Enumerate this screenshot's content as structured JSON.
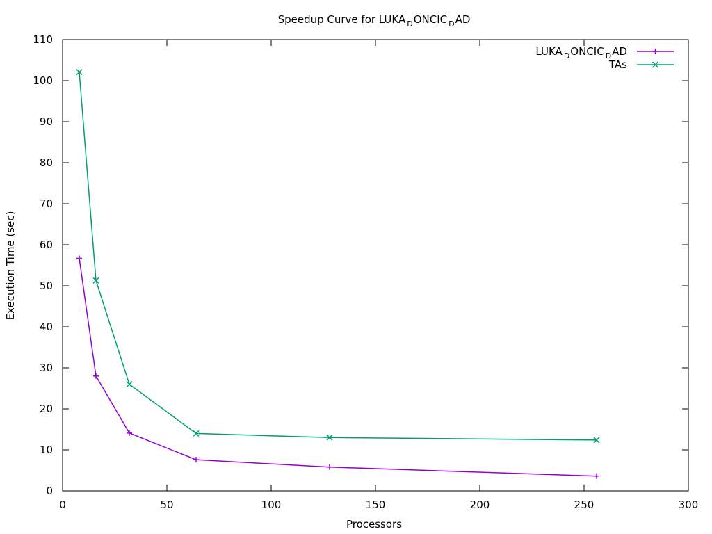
{
  "chart_data": {
    "type": "line",
    "title": {
      "parts": [
        {
          "text": "Speedup Curve for LUKA",
          "sub": false
        },
        {
          "text": "D",
          "sub": true
        },
        {
          "text": "ONCIC",
          "sub": false
        },
        {
          "text": "D",
          "sub": true
        },
        {
          "text": "AD",
          "sub": false
        }
      ]
    },
    "xlabel": "Processors",
    "ylabel": "Execution Time (sec)",
    "xlim": [
      0,
      300
    ],
    "ylim": [
      0,
      110
    ],
    "xticks": [
      0,
      50,
      100,
      150,
      200,
      250,
      300
    ],
    "yticks": [
      0,
      10,
      20,
      30,
      40,
      50,
      60,
      70,
      80,
      90,
      100,
      110
    ],
    "grid": false,
    "legend_position": "top-right",
    "series": [
      {
        "name_parts": [
          {
            "text": "LUKA",
            "sub": false
          },
          {
            "text": "D",
            "sub": true
          },
          {
            "text": "ONCIC",
            "sub": false
          },
          {
            "text": "D",
            "sub": true
          },
          {
            "text": "AD",
            "sub": false
          }
        ],
        "color": "#9400d3",
        "marker": "plus",
        "x": [
          8,
          16,
          32,
          64,
          128,
          256
        ],
        "y": [
          56.7,
          28.0,
          14.1,
          7.6,
          5.8,
          3.6
        ]
      },
      {
        "name_parts": [
          {
            "text": "TAs",
            "sub": false
          }
        ],
        "color": "#009e73",
        "marker": "cross",
        "x": [
          8,
          16,
          32,
          64,
          128,
          256
        ],
        "y": [
          102.1,
          51.3,
          26.0,
          14.0,
          13.0,
          12.4
        ]
      }
    ]
  }
}
